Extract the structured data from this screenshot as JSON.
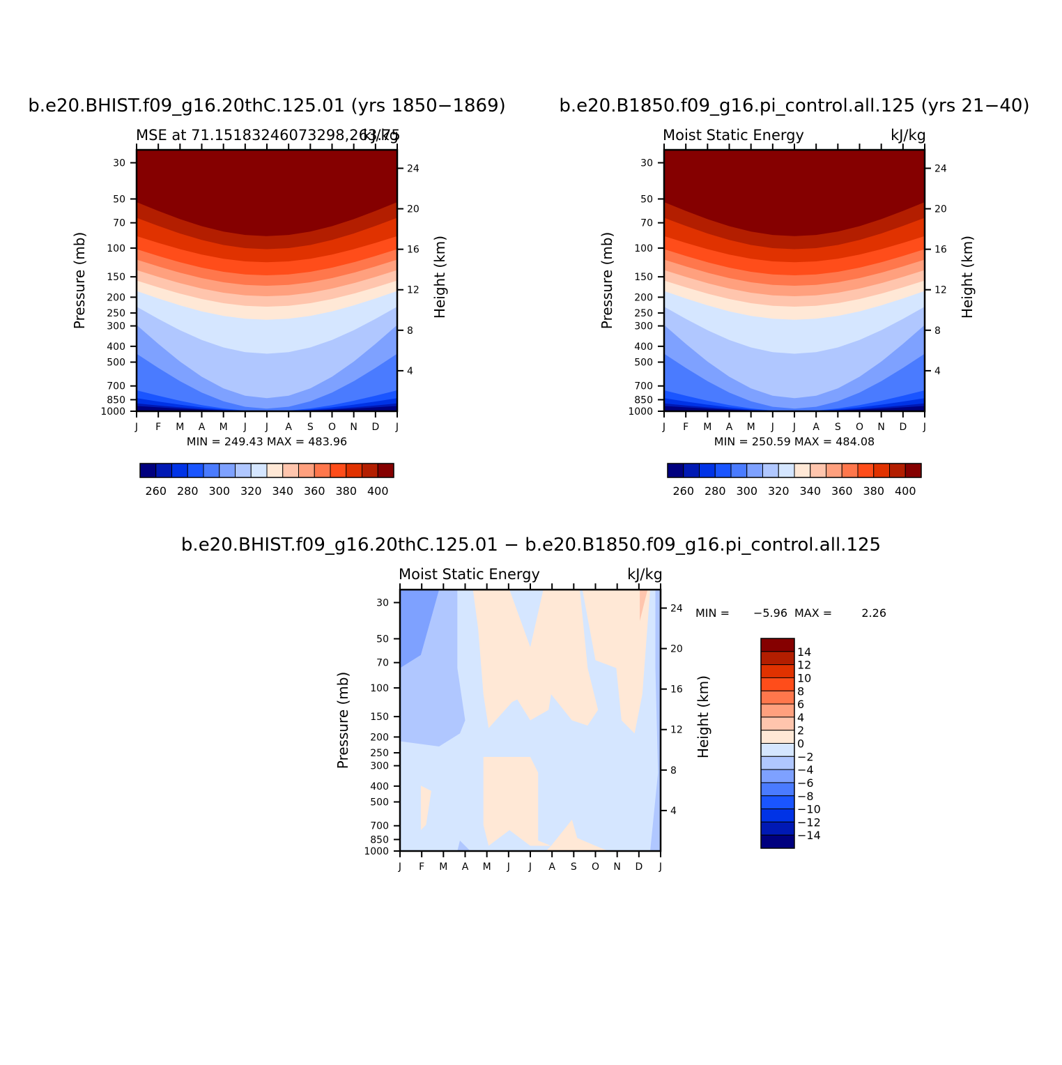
{
  "colors": {
    "levels_palette": [
      "#00007f",
      "#0019b4",
      "#0033e6",
      "#1a55ff",
      "#4a7bff",
      "#7ea1ff",
      "#b0c7ff",
      "#d5e6ff",
      "#ffe8d6",
      "#ffc5ad",
      "#ffa07e",
      "#ff774c",
      "#ff4d1a",
      "#e03200",
      "#b31e00",
      "#850000"
    ],
    "diff_palette": [
      "#00007f",
      "#0019b4",
      "#0033e6",
      "#1a55ff",
      "#4a7bff",
      "#7ea1ff",
      "#b0c7ff",
      "#d5e6ff",
      "#ffe8d6",
      "#ffc5ad",
      "#ffa07e",
      "#ff774c",
      "#ff4d1a",
      "#e03200",
      "#b31e00",
      "#850000"
    ]
  },
  "top_left": {
    "title": "b.e20.BHIST.f09_g16.20thC.125.01 (yrs 1850−1869)",
    "left_label": "MSE at 71.15183246073298,263.75",
    "right_label": "kJ/kg",
    "stats": "MIN = 249.43 MAX = 483.96"
  },
  "top_right": {
    "title": "b.e20.B1850.f09_g16.pi_control.all.125 (yrs 21−40)",
    "left_label": "Moist Static Energy",
    "right_label": "kJ/kg",
    "stats": "MIN = 250.59 MAX = 484.08"
  },
  "bottom": {
    "title": "b.e20.BHIST.f09_g16.20thC.125.01 − b.e20.B1850.f09_g16.pi_control.all.125",
    "left_label": "Moist Static Energy",
    "right_label": "kJ/kg",
    "stats_min_label": "MIN =",
    "stats_min": "−5.96",
    "stats_max_label": "MAX =",
    "stats_max": "2.26"
  },
  "chart_data": [
    {
      "type": "heatmap",
      "title": "b.e20.BHIST.f09_g16.20thC.125.01 (yrs 1850−1869)",
      "xlabel": "",
      "ylabel": "Pressure (mb)",
      "y2label": "Height (km)",
      "x_ticks": [
        "J",
        "F",
        "M",
        "A",
        "M",
        "J",
        "J",
        "A",
        "S",
        "O",
        "N",
        "D",
        "J"
      ],
      "y_ticks": [
        30,
        50,
        70,
        100,
        150,
        200,
        250,
        300,
        400,
        500,
        700,
        850,
        1000
      ],
      "y2_ticks": [
        24,
        20,
        16,
        12,
        8,
        4
      ],
      "ylim": [
        1000,
        25
      ],
      "y_scale": "log",
      "colorbar_ticks": [
        260,
        280,
        300,
        320,
        340,
        360,
        380,
        400
      ],
      "levels": [
        250,
        260,
        270,
        280,
        290,
        300,
        310,
        320,
        330,
        340,
        350,
        360,
        370,
        380,
        390,
        400
      ],
      "min": 249.43,
      "max": 483.96
    },
    {
      "type": "heatmap",
      "title": "b.e20.B1850.f09_g16.pi_control.all.125 (yrs 21−40)",
      "xlabel": "",
      "ylabel": "Pressure (mb)",
      "y2label": "Height (km)",
      "x_ticks": [
        "J",
        "F",
        "M",
        "A",
        "M",
        "J",
        "J",
        "A",
        "S",
        "O",
        "N",
        "D",
        "J"
      ],
      "y_ticks": [
        30,
        50,
        70,
        100,
        150,
        200,
        250,
        300,
        400,
        500,
        700,
        850,
        1000
      ],
      "y2_ticks": [
        24,
        20,
        16,
        12,
        8,
        4
      ],
      "ylim": [
        1000,
        25
      ],
      "y_scale": "log",
      "colorbar_ticks": [
        260,
        280,
        300,
        320,
        340,
        360,
        380,
        400
      ],
      "levels": [
        250,
        260,
        270,
        280,
        290,
        300,
        310,
        320,
        330,
        340,
        350,
        360,
        370,
        380,
        390,
        400
      ],
      "min": 250.59,
      "max": 484.08
    },
    {
      "type": "heatmap",
      "title": "b.e20.BHIST.f09_g16.20thC.125.01 − b.e20.B1850.f09_g16.pi_control.all.125",
      "xlabel": "",
      "ylabel": "Pressure (mb)",
      "y2label": "Height (km)",
      "x_ticks": [
        "J",
        "F",
        "M",
        "A",
        "M",
        "J",
        "J",
        "A",
        "S",
        "O",
        "N",
        "D",
        "J"
      ],
      "y_ticks": [
        30,
        50,
        70,
        100,
        150,
        200,
        250,
        300,
        400,
        500,
        700,
        850,
        1000
      ],
      "y2_ticks": [
        24,
        20,
        16,
        12,
        8,
        4
      ],
      "ylim": [
        1000,
        25
      ],
      "y_scale": "log",
      "colorbar_ticks": [
        "14",
        "12",
        "10",
        "8",
        "6",
        "4",
        "2",
        "0",
        "−2",
        "−4",
        "−6",
        "−8",
        "−10",
        "−12",
        "−14"
      ],
      "min": -5.96,
      "max": 2.26
    }
  ]
}
